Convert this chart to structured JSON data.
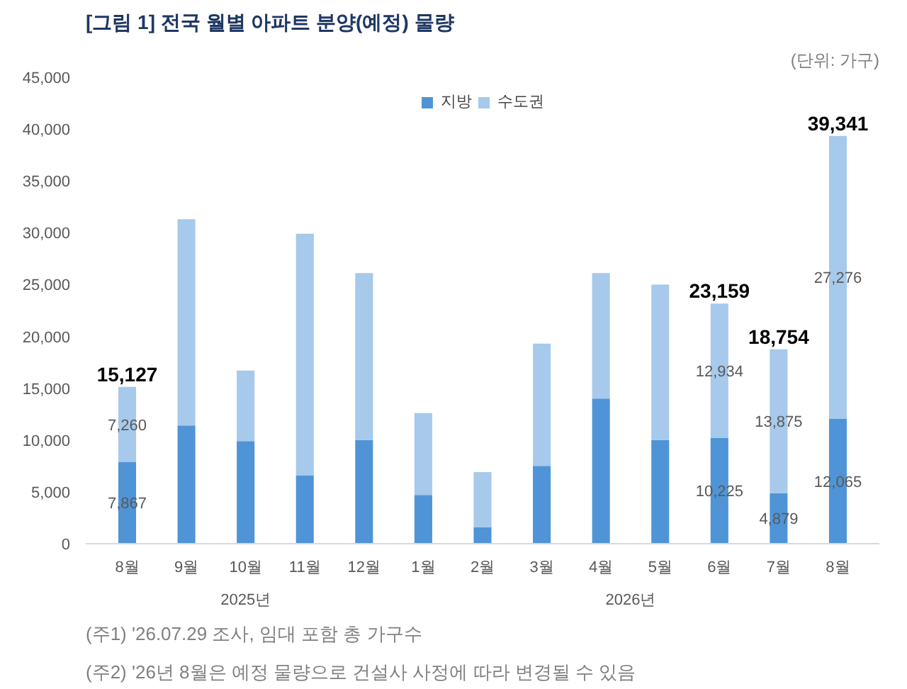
{
  "chart_data": {
    "type": "bar",
    "stacked": true,
    "title": "[그림 1] 전국 월별 아파트 분양(예정) 물량",
    "subtitle": "(단위: 가구)",
    "categories": [
      "8월",
      "9월",
      "10월",
      "11월",
      "12월",
      "1월",
      "2월",
      "3월",
      "4월",
      "5월",
      "6월",
      "7월",
      "8월"
    ],
    "series": [
      {
        "name": "지방",
        "color": "#4f94d6",
        "values": [
          7867,
          11400,
          9900,
          6600,
          10000,
          4700,
          1600,
          7500,
          14000,
          10000,
          10225,
          4879,
          12065
        ],
        "value_labels": [
          "7,867",
          null,
          null,
          null,
          null,
          null,
          null,
          null,
          null,
          null,
          "10,225",
          "4,879",
          "12,065"
        ]
      },
      {
        "name": "수도권",
        "color": "#a6c9ec",
        "values": [
          7260,
          19900,
          6800,
          23300,
          16100,
          7900,
          5300,
          11800,
          12100,
          15000,
          12934,
          13875,
          27276
        ],
        "value_labels": [
          "7,260",
          null,
          null,
          null,
          null,
          null,
          null,
          null,
          null,
          null,
          "12,934",
          "13,875",
          "27,276"
        ]
      }
    ],
    "totals": [
      "15,127",
      null,
      null,
      null,
      null,
      null,
      null,
      null,
      null,
      null,
      "23,159",
      "18,754",
      "39,341"
    ],
    "ylim": [
      0,
      45000
    ],
    "yticks": [
      0,
      {
        "value": 5000,
        "label": "5,000"
      },
      {
        "value": 10000,
        "label": "10,000"
      },
      {
        "value": 15000,
        "label": "15,000"
      },
      {
        "value": 20000,
        "label": "20,000"
      },
      {
        "value": 25000,
        "label": "25,000"
      },
      {
        "value": 30000,
        "label": "30,000"
      },
      {
        "value": 35000,
        "label": "35,000"
      },
      {
        "value": 40000,
        "label": "40,000"
      },
      {
        "value": 45000,
        "label": "45,000"
      }
    ],
    "grid": false,
    "legend": "top",
    "annotations": [
      "2025년",
      "2026년",
      "(주1) '26.07.29 조사, 임대 포함 총 가구수",
      "(주2) '26년 8월은 예정 물량으로 건설사 사정에 따라 변경될 수 있음"
    ]
  }
}
